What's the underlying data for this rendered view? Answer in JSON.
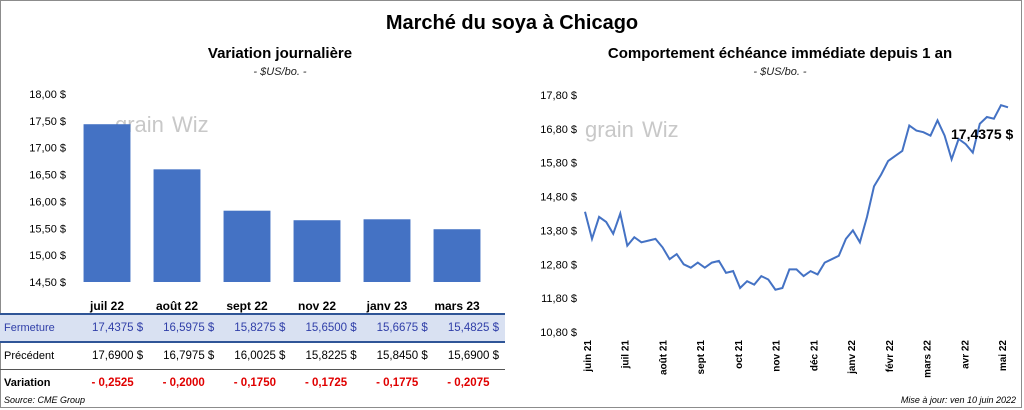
{
  "title": "Marché du soya à Chicago",
  "watermark": "grainWiz",
  "left_panel": {
    "subtitle": "Variation  journalière",
    "unit": "- $US/bo. -"
  },
  "right_panel": {
    "subtitle": "Comportement  échéance  immédiate depuis 1 an",
    "unit": "- $US/bo. -",
    "last_value_label": "17,4375 $"
  },
  "table": {
    "row_labels": [
      "Fermeture",
      "Précédent",
      "Variation"
    ],
    "fermeture": [
      "17,4375  $",
      "16,5975  $",
      "15,8275  $",
      "15,6500  $",
      "15,6675  $",
      "15,4825  $"
    ],
    "precedent": [
      "17,6900  $",
      "16,7975  $",
      "16,0025  $",
      "15,8225  $",
      "15,8450  $",
      "15,6900  $"
    ],
    "variation": [
      "- 0,2525",
      "- 0,2000",
      "- 0,1750",
      "- 0,1725",
      "- 0,1775",
      "- 0,2075"
    ]
  },
  "footer": {
    "source": "Source: CME Group",
    "updated": "Mise à jour: ven 10 juin 2022"
  },
  "colors": {
    "bar": "#4472c4",
    "line": "#4472c4",
    "negative": "#e00000",
    "highlight_row": "#d9e1f2"
  },
  "chart_data": [
    {
      "type": "bar",
      "title": "Variation  journalière",
      "categories": [
        "juil 22",
        "août 22",
        "sept 22",
        "nov 22",
        "janv 23",
        "mars 23"
      ],
      "values": [
        17.4375,
        16.5975,
        15.8275,
        15.65,
        15.6675,
        15.4825
      ],
      "ylim": [
        14.5,
        18.0
      ],
      "yticks": [
        14.5,
        15.0,
        15.5,
        16.0,
        16.5,
        17.0,
        17.5,
        18.0
      ],
      "ytick_labels": [
        "14,50 $",
        "15,00 $",
        "15,50 $",
        "16,00 $",
        "16,50 $",
        "17,00 $",
        "17,50 $",
        "18,00 $"
      ],
      "grid": false
    },
    {
      "type": "line",
      "title": "Comportement  échéance  immédiate depuis 1 an",
      "x_labels": [
        "juin 21",
        "juil 21",
        "août 21",
        "sept 21",
        "oct 21",
        "nov 21",
        "déc 21",
        "janv 22",
        "févr 22",
        "mars 22",
        "avr 22",
        "mai 22"
      ],
      "ylim": [
        10.8,
        17.8
      ],
      "yticks": [
        10.8,
        11.8,
        12.8,
        13.8,
        14.8,
        15.8,
        16.8,
        17.8
      ],
      "ytick_labels": [
        "10,80 $",
        "11,80 $",
        "12,80 $",
        "13,80 $",
        "14,80 $",
        "15,80 $",
        "16,80 $",
        "17,80 $"
      ],
      "x": [
        0,
        0.2,
        0.4,
        0.6,
        0.8,
        1.0,
        1.2,
        1.4,
        1.6,
        1.8,
        2.0,
        2.2,
        2.4,
        2.6,
        2.8,
        3.0,
        3.2,
        3.4,
        3.6,
        3.8,
        4.0,
        4.2,
        4.4,
        4.6,
        4.8,
        5.0,
        5.2,
        5.4,
        5.6,
        5.8,
        6.0,
        6.2,
        6.4,
        6.6,
        6.8,
        7.0,
        7.2,
        7.4,
        7.6,
        7.8,
        8.0,
        8.2,
        8.4,
        8.6,
        8.8,
        9.0,
        9.2,
        9.4,
        9.6,
        9.8,
        10.0,
        10.2,
        10.4,
        10.6,
        10.8,
        11.0,
        11.2,
        11.4,
        11.6,
        11.8,
        12.0
      ],
      "values": [
        14.35,
        13.55,
        14.2,
        14.05,
        13.7,
        14.3,
        13.35,
        13.6,
        13.45,
        13.5,
        13.55,
        13.3,
        12.95,
        13.1,
        12.8,
        12.7,
        12.85,
        12.7,
        12.85,
        12.9,
        12.55,
        12.6,
        12.1,
        12.3,
        12.2,
        12.45,
        12.35,
        12.05,
        12.1,
        12.65,
        12.65,
        12.45,
        12.6,
        12.5,
        12.85,
        12.95,
        13.05,
        13.55,
        13.8,
        13.45,
        14.2,
        15.1,
        15.45,
        15.85,
        16.0,
        16.15,
        16.9,
        16.75,
        16.7,
        16.6,
        17.05,
        16.6,
        15.9,
        16.5,
        16.35,
        16.1,
        16.95,
        17.15,
        17.1,
        17.5,
        17.4375
      ],
      "last_value": 17.4375,
      "grid": false
    }
  ]
}
